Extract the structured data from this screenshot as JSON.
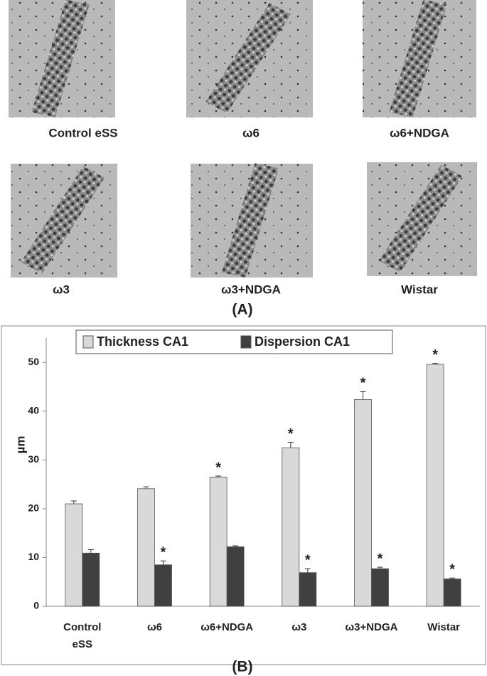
{
  "panel_a": {
    "label": "(A)",
    "images": [
      {
        "label": "Control eSS"
      },
      {
        "label": "ω6"
      },
      {
        "label": "ω6+NDGA"
      },
      {
        "label": "ω3"
      },
      {
        "label": "ω3+NDGA"
      },
      {
        "label": "Wistar"
      }
    ]
  },
  "chart_data": {
    "type": "bar",
    "panel_label": "(B)",
    "y_label": "µm",
    "categories": [
      "Control eSS",
      "ω6",
      "ω6+NDGA",
      "ω3",
      "ω3+NDGA",
      "Wistar"
    ],
    "series": [
      {
        "name": "Thickness CA1",
        "color": "#d9d9d9",
        "values": [
          21.0,
          24.1,
          26.5,
          32.5,
          42.4,
          49.6
        ],
        "errors": [
          0.6,
          0.4,
          0.2,
          1.1,
          1.6,
          0.2
        ],
        "significance": [
          null,
          null,
          "*",
          "*",
          "*",
          "*"
        ]
      },
      {
        "name": "Dispersion CA1",
        "color": "#404040",
        "values": [
          10.9,
          8.5,
          12.2,
          6.9,
          7.7,
          5.6
        ],
        "errors": [
          0.7,
          0.8,
          0.2,
          0.8,
          0.3,
          0.2
        ],
        "significance": [
          null,
          "*",
          null,
          "*",
          "*",
          "*"
        ]
      }
    ],
    "ylim": [
      0,
      55
    ],
    "yticks": [
      0,
      10,
      20,
      30,
      40,
      50
    ],
    "grid": false,
    "legend": "top"
  }
}
